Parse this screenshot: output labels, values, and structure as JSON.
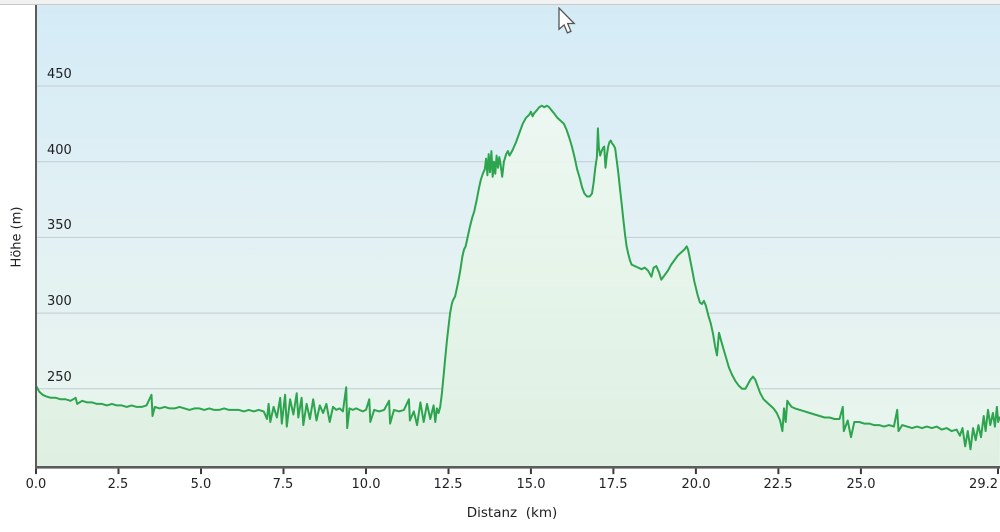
{
  "axis_titles": {
    "y": "Höhe (m)",
    "x": "Distanz  (km)"
  },
  "colors": {
    "line": "#2da44e",
    "grid": "#c2cdd4",
    "axis": "#5c5c5c",
    "tick": "#3a3a3a",
    "bg_gradient": [
      "#d4ebf6",
      "#e3f1f4",
      "#e9f5ec"
    ],
    "fill_gradient": [
      "#edf8f0",
      "#def0e2"
    ]
  },
  "chart_data": {
    "type": "area",
    "title": "",
    "xlabel": "Distanz  (km)",
    "ylabel": "Höhe (m)",
    "x_range": [
      0,
      29.2
    ],
    "y_range": [
      198.3,
      503.5
    ],
    "grid": "horizontal",
    "legend": "none",
    "y_ticks": [
      {
        "value": 450,
        "label": "450"
      },
      {
        "value": 400,
        "label": "400"
      },
      {
        "value": 350,
        "label": "350"
      },
      {
        "value": 300,
        "label": "300"
      },
      {
        "value": 250,
        "label": "250"
      }
    ],
    "x_ticks": [
      {
        "value": 0,
        "label": "0.0"
      },
      {
        "value": 2.5,
        "label": "2.5"
      },
      {
        "value": 5,
        "label": "5.0"
      },
      {
        "value": 7.5,
        "label": "7.5"
      },
      {
        "value": 10,
        "label": "10.0"
      },
      {
        "value": 12.5,
        "label": "12.5"
      },
      {
        "value": 15,
        "label": "15.0"
      },
      {
        "value": 17.5,
        "label": "17.5"
      },
      {
        "value": 20,
        "label": "20.0"
      },
      {
        "value": 22.5,
        "label": "22.5"
      },
      {
        "value": 25,
        "label": "25.0"
      },
      {
        "value": 29.2,
        "label": "29.2"
      }
    ],
    "points": [
      [
        0,
        252
      ],
      [
        0.05,
        250
      ],
      [
        0.1,
        248
      ],
      [
        0.2,
        246
      ],
      [
        0.3,
        245
      ],
      [
        0.45,
        244
      ],
      [
        0.6,
        244
      ],
      [
        0.75,
        243
      ],
      [
        0.9,
        243
      ],
      [
        1.05,
        242
      ],
      [
        1.2,
        244
      ],
      [
        1.25,
        240
      ],
      [
        1.4,
        242
      ],
      [
        1.55,
        241
      ],
      [
        1.7,
        241
      ],
      [
        1.85,
        240
      ],
      [
        2,
        240
      ],
      [
        2.15,
        239
      ],
      [
        2.3,
        240
      ],
      [
        2.45,
        239
      ],
      [
        2.6,
        239
      ],
      [
        2.75,
        238
      ],
      [
        2.9,
        239
      ],
      [
        3.05,
        238
      ],
      [
        3.2,
        238
      ],
      [
        3.35,
        239
      ],
      [
        3.5,
        246
      ],
      [
        3.53,
        232
      ],
      [
        3.6,
        238
      ],
      [
        3.75,
        237
      ],
      [
        3.9,
        238
      ],
      [
        4.05,
        237
      ],
      [
        4.2,
        237
      ],
      [
        4.35,
        238
      ],
      [
        4.5,
        237
      ],
      [
        4.65,
        236
      ],
      [
        4.8,
        237
      ],
      [
        4.95,
        237
      ],
      [
        5.1,
        236
      ],
      [
        5.25,
        237
      ],
      [
        5.4,
        236
      ],
      [
        5.55,
        236
      ],
      [
        5.7,
        237
      ],
      [
        5.85,
        236
      ],
      [
        6,
        236
      ],
      [
        6.15,
        236
      ],
      [
        6.3,
        235
      ],
      [
        6.45,
        236
      ],
      [
        6.6,
        235
      ],
      [
        6.75,
        236
      ],
      [
        6.9,
        235
      ],
      [
        7,
        230
      ],
      [
        7.05,
        240
      ],
      [
        7.1,
        228
      ],
      [
        7.2,
        238
      ],
      [
        7.3,
        231
      ],
      [
        7.4,
        244
      ],
      [
        7.45,
        227
      ],
      [
        7.55,
        246
      ],
      [
        7.6,
        225
      ],
      [
        7.7,
        243
      ],
      [
        7.8,
        233
      ],
      [
        7.9,
        247
      ],
      [
        7.95,
        231
      ],
      [
        8.05,
        244
      ],
      [
        8.1,
        226
      ],
      [
        8.2,
        240
      ],
      [
        8.3,
        230
      ],
      [
        8.4,
        243
      ],
      [
        8.5,
        229
      ],
      [
        8.6,
        239
      ],
      [
        8.7,
        234
      ],
      [
        8.8,
        240
      ],
      [
        8.9,
        228
      ],
      [
        9,
        238
      ],
      [
        9.1,
        236
      ],
      [
        9.2,
        237
      ],
      [
        9.3,
        235
      ],
      [
        9.4,
        251
      ],
      [
        9.43,
        224
      ],
      [
        9.5,
        237
      ],
      [
        9.6,
        236
      ],
      [
        9.7,
        237
      ],
      [
        9.8,
        236
      ],
      [
        9.9,
        235
      ],
      [
        10,
        236
      ],
      [
        10.1,
        243
      ],
      [
        10.13,
        228
      ],
      [
        10.25,
        236
      ],
      [
        10.4,
        235
      ],
      [
        10.55,
        236
      ],
      [
        10.7,
        242
      ],
      [
        10.73,
        227
      ],
      [
        10.85,
        236
      ],
      [
        11,
        235
      ],
      [
        11.15,
        236
      ],
      [
        11.3,
        243
      ],
      [
        11.33,
        229
      ],
      [
        11.45,
        235
      ],
      [
        11.55,
        226
      ],
      [
        11.65,
        241
      ],
      [
        11.75,
        228
      ],
      [
        11.85,
        240
      ],
      [
        11.95,
        230
      ],
      [
        12.05,
        239
      ],
      [
        12.1,
        228
      ],
      [
        12.15,
        237
      ],
      [
        12.2,
        234
      ],
      [
        12.25,
        238
      ],
      [
        12.3,
        247
      ],
      [
        12.35,
        258
      ],
      [
        12.4,
        270
      ],
      [
        12.45,
        281
      ],
      [
        12.5,
        291
      ],
      [
        12.55,
        300
      ],
      [
        12.6,
        306
      ],
      [
        12.63,
        308
      ],
      [
        12.7,
        311
      ],
      [
        12.78,
        319
      ],
      [
        12.85,
        327
      ],
      [
        12.92,
        337
      ],
      [
        12.97,
        342
      ],
      [
        13.02,
        344
      ],
      [
        13.08,
        350
      ],
      [
        13.15,
        357
      ],
      [
        13.22,
        363
      ],
      [
        13.28,
        367
      ],
      [
        13.35,
        374
      ],
      [
        13.42,
        382
      ],
      [
        13.48,
        388
      ],
      [
        13.54,
        392
      ],
      [
        13.6,
        395
      ],
      [
        13.64,
        402
      ],
      [
        13.68,
        391
      ],
      [
        13.72,
        405
      ],
      [
        13.76,
        393
      ],
      [
        13.8,
        407
      ],
      [
        13.84,
        390
      ],
      [
        13.88,
        400
      ],
      [
        13.92,
        392
      ],
      [
        13.96,
        404
      ],
      [
        14,
        396
      ],
      [
        14.04,
        403
      ],
      [
        14.08,
        398
      ],
      [
        14.13,
        390
      ],
      [
        14.18,
        400
      ],
      [
        14.25,
        405
      ],
      [
        14.3,
        407
      ],
      [
        14.35,
        404
      ],
      [
        14.4,
        406
      ],
      [
        14.45,
        408
      ],
      [
        14.55,
        413
      ],
      [
        14.65,
        419
      ],
      [
        14.75,
        425
      ],
      [
        14.85,
        429
      ],
      [
        14.95,
        431
      ],
      [
        15,
        433
      ],
      [
        15.05,
        430
      ],
      [
        15.1,
        432
      ],
      [
        15.18,
        434
      ],
      [
        15.25,
        436
      ],
      [
        15.33,
        437
      ],
      [
        15.4,
        436
      ],
      [
        15.48,
        437
      ],
      [
        15.55,
        436
      ],
      [
        15.62,
        434
      ],
      [
        15.7,
        432
      ],
      [
        15.8,
        429
      ],
      [
        15.9,
        427
      ],
      [
        16,
        425
      ],
      [
        16.08,
        421
      ],
      [
        16.16,
        416
      ],
      [
        16.24,
        410
      ],
      [
        16.32,
        403
      ],
      [
        16.4,
        395
      ],
      [
        16.48,
        389
      ],
      [
        16.55,
        383
      ],
      [
        16.62,
        379
      ],
      [
        16.7,
        377
      ],
      [
        16.78,
        377
      ],
      [
        16.85,
        379
      ],
      [
        16.9,
        386
      ],
      [
        16.95,
        396
      ],
      [
        17,
        403
      ],
      [
        17.03,
        422
      ],
      [
        17.06,
        409
      ],
      [
        17.1,
        404
      ],
      [
        17.14,
        407
      ],
      [
        17.18,
        409
      ],
      [
        17.22,
        410
      ],
      [
        17.26,
        396
      ],
      [
        17.3,
        404
      ],
      [
        17.34,
        410
      ],
      [
        17.38,
        413
      ],
      [
        17.42,
        414
      ],
      [
        17.46,
        412
      ],
      [
        17.5,
        411
      ],
      [
        17.55,
        409
      ],
      [
        17.6,
        401
      ],
      [
        17.65,
        392
      ],
      [
        17.7,
        382
      ],
      [
        17.75,
        372
      ],
      [
        17.8,
        362
      ],
      [
        17.85,
        352
      ],
      [
        17.9,
        344
      ],
      [
        17.95,
        339
      ],
      [
        18,
        335
      ],
      [
        18.05,
        332
      ],
      [
        18.15,
        331
      ],
      [
        18.25,
        330
      ],
      [
        18.35,
        329
      ],
      [
        18.45,
        330
      ],
      [
        18.55,
        328
      ],
      [
        18.65,
        324
      ],
      [
        18.72,
        330
      ],
      [
        18.8,
        331
      ],
      [
        18.88,
        327
      ],
      [
        18.95,
        322
      ],
      [
        19.05,
        325
      ],
      [
        19.15,
        328
      ],
      [
        19.25,
        332
      ],
      [
        19.35,
        335
      ],
      [
        19.45,
        338
      ],
      [
        19.55,
        340
      ],
      [
        19.65,
        342
      ],
      [
        19.72,
        344
      ],
      [
        19.76,
        342
      ],
      [
        19.8,
        338
      ],
      [
        19.9,
        327
      ],
      [
        19.95,
        321
      ],
      [
        20.05,
        312
      ],
      [
        20.12,
        307
      ],
      [
        20.18,
        306
      ],
      [
        20.24,
        308
      ],
      [
        20.3,
        305
      ],
      [
        20.38,
        298
      ],
      [
        20.45,
        293
      ],
      [
        20.52,
        286
      ],
      [
        20.58,
        278
      ],
      [
        20.64,
        272
      ],
      [
        20.7,
        287
      ],
      [
        20.76,
        282
      ],
      [
        20.84,
        276
      ],
      [
        20.92,
        270
      ],
      [
        21,
        264
      ],
      [
        21.1,
        259
      ],
      [
        21.2,
        255
      ],
      [
        21.3,
        252
      ],
      [
        21.4,
        250
      ],
      [
        21.5,
        250
      ],
      [
        21.55,
        252
      ],
      [
        21.65,
        256
      ],
      [
        21.73,
        258
      ],
      [
        21.8,
        256
      ],
      [
        21.88,
        251
      ],
      [
        21.95,
        247
      ],
      [
        22.05,
        243
      ],
      [
        22.15,
        241
      ],
      [
        22.25,
        239
      ],
      [
        22.35,
        237
      ],
      [
        22.45,
        234
      ],
      [
        22.55,
        229
      ],
      [
        22.62,
        222
      ],
      [
        22.67,
        237
      ],
      [
        22.72,
        228
      ],
      [
        22.77,
        242
      ],
      [
        22.83,
        240
      ],
      [
        22.9,
        238
      ],
      [
        23,
        237
      ],
      [
        23.15,
        236
      ],
      [
        23.3,
        235
      ],
      [
        23.45,
        234
      ],
      [
        23.6,
        233
      ],
      [
        23.75,
        232
      ],
      [
        23.9,
        231
      ],
      [
        24.05,
        231
      ],
      [
        24.2,
        230
      ],
      [
        24.35,
        230
      ],
      [
        24.45,
        238
      ],
      [
        24.48,
        222
      ],
      [
        24.6,
        229
      ],
      [
        24.7,
        218
      ],
      [
        24.8,
        228
      ],
      [
        24.95,
        228
      ],
      [
        25.1,
        227
      ],
      [
        25.25,
        227
      ],
      [
        25.4,
        226
      ],
      [
        25.55,
        226
      ],
      [
        25.7,
        225
      ],
      [
        25.85,
        226
      ],
      [
        26,
        225
      ],
      [
        26.1,
        236
      ],
      [
        26.14,
        222
      ],
      [
        26.25,
        226
      ],
      [
        26.4,
        225
      ],
      [
        26.55,
        224
      ],
      [
        26.7,
        225
      ],
      [
        26.85,
        224
      ],
      [
        27,
        225
      ],
      [
        27.15,
        224
      ],
      [
        27.3,
        225
      ],
      [
        27.45,
        223
      ],
      [
        27.6,
        224
      ],
      [
        27.75,
        222
      ],
      [
        27.9,
        223
      ],
      [
        28,
        219
      ],
      [
        28.08,
        224
      ],
      [
        28.16,
        212
      ],
      [
        28.24,
        222
      ],
      [
        28.32,
        210
      ],
      [
        28.4,
        224
      ],
      [
        28.48,
        216
      ],
      [
        28.56,
        226
      ],
      [
        28.64,
        218
      ],
      [
        28.72,
        232
      ],
      [
        28.78,
        222
      ],
      [
        28.85,
        236
      ],
      [
        28.92,
        226
      ],
      [
        29,
        234
      ],
      [
        29.06,
        225
      ],
      [
        29.12,
        238
      ],
      [
        29.16,
        228
      ],
      [
        29.2,
        231
      ]
    ]
  }
}
